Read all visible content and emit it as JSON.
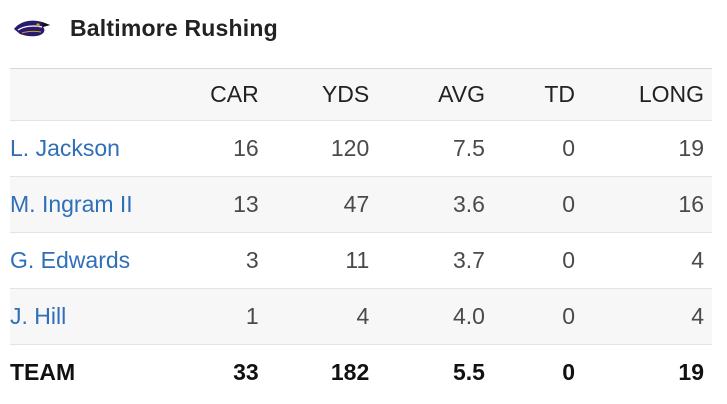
{
  "header": {
    "logo": "ravens-logo-icon",
    "title": "Baltimore Rushing"
  },
  "table": {
    "columns": [
      "",
      "CAR",
      "YDS",
      "AVG",
      "TD",
      "LONG"
    ],
    "rows": [
      {
        "name": "L. Jackson",
        "car": "16",
        "yds": "120",
        "avg": "7.5",
        "td": "0",
        "long": "19"
      },
      {
        "name": "M. Ingram II",
        "car": "13",
        "yds": "47",
        "avg": "3.6",
        "td": "0",
        "long": "16"
      },
      {
        "name": "G. Edwards",
        "car": "3",
        "yds": "11",
        "avg": "3.7",
        "td": "0",
        "long": "4"
      },
      {
        "name": "J. Hill",
        "car": "1",
        "yds": "4",
        "avg": "4.0",
        "td": "0",
        "long": "4"
      }
    ],
    "total": {
      "name": "TEAM",
      "car": "33",
      "yds": "182",
      "avg": "5.5",
      "td": "0",
      "long": "19"
    }
  },
  "colors": {
    "link": "#2f6fb8",
    "stripe": "#f7f7f7",
    "logo_purple": "#2a1a6e"
  }
}
